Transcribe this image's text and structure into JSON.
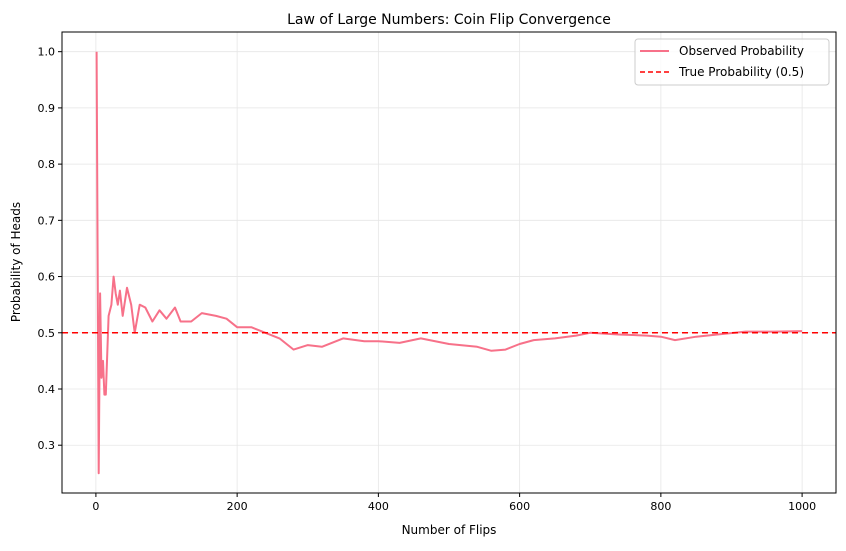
{
  "chart_data": {
    "type": "line",
    "title": "Law of Large Numbers: Coin Flip Convergence",
    "xlabel": "Number of Flips",
    "ylabel": "Probability of Heads",
    "xlim": [
      -48,
      1048
    ],
    "ylim": [
      0.215,
      1.035
    ],
    "xticks": [
      0,
      200,
      400,
      600,
      800,
      1000
    ],
    "yticks": [
      0.3,
      0.4,
      0.5,
      0.6,
      0.7,
      0.8,
      0.9,
      1.0
    ],
    "ytick_labels": [
      "0.3",
      "0.4",
      "0.5",
      "0.6",
      "0.7",
      "0.8",
      "0.9",
      "1.0"
    ],
    "grid": true,
    "legend_position": "top-right",
    "series": [
      {
        "name": "Observed Probability",
        "color": "#f77189",
        "style": "solid",
        "x": [
          1,
          4,
          6,
          8,
          10,
          12,
          14,
          18,
          22,
          25,
          28,
          31,
          34,
          38,
          44,
          50,
          55,
          62,
          70,
          80,
          90,
          100,
          112,
          120,
          135,
          150,
          170,
          185,
          200,
          220,
          240,
          260,
          280,
          300,
          320,
          350,
          380,
          400,
          430,
          460,
          500,
          540,
          560,
          580,
          600,
          620,
          650,
          680,
          700,
          740,
          780,
          800,
          820,
          850,
          880,
          920,
          960,
          1000
        ],
        "y": [
          1.0,
          0.25,
          0.57,
          0.42,
          0.45,
          0.39,
          0.39,
          0.53,
          0.55,
          0.6,
          0.57,
          0.55,
          0.575,
          0.53,
          0.58,
          0.55,
          0.5,
          0.55,
          0.545,
          0.52,
          0.54,
          0.525,
          0.545,
          0.52,
          0.52,
          0.535,
          0.53,
          0.525,
          0.51,
          0.51,
          0.5,
          0.49,
          0.47,
          0.478,
          0.475,
          0.49,
          0.485,
          0.485,
          0.482,
          0.49,
          0.48,
          0.475,
          0.468,
          0.47,
          0.48,
          0.487,
          0.49,
          0.495,
          0.5,
          0.497,
          0.495,
          0.493,
          0.487,
          0.493,
          0.497,
          0.502,
          0.502,
          0.503
        ]
      },
      {
        "name": "True Probability (0.5)",
        "color": "#ff0000",
        "style": "dashed",
        "value": 0.5
      }
    ]
  }
}
